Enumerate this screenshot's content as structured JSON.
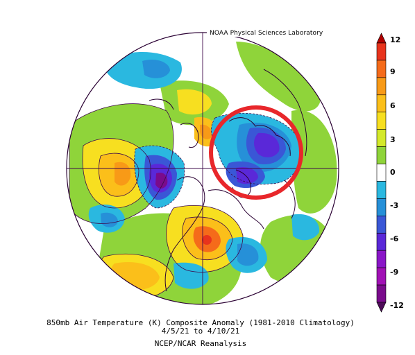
{
  "credit": "NOAA Physical Sciences Laboratory",
  "caption": {
    "line1": "850mb Air Temperature (K) Composite Anomaly (1981-2010 Climatology)",
    "line2": "4/5/21  to 4/10/21",
    "line3": "NCEP/NCAR Reanalysis"
  },
  "colorbar": {
    "labels": [
      "12",
      "9",
      "6",
      "3",
      "0",
      "-3",
      "-6",
      "-9",
      "-12"
    ],
    "bins": [
      {
        "color": "#b00000"
      },
      {
        "color": "#e8331c"
      },
      {
        "color": "#f56b1a"
      },
      {
        "color": "#f89a17"
      },
      {
        "color": "#fbbf1a"
      },
      {
        "color": "#f7df20"
      },
      {
        "color": "#d4e92a"
      },
      {
        "color": "#8fd43a"
      },
      {
        "color": "#ffffff"
      },
      {
        "color": "#2ab8e0"
      },
      {
        "color": "#2690d8"
      },
      {
        "color": "#3a57d6"
      },
      {
        "color": "#5a28d8"
      },
      {
        "color": "#8a16c8"
      },
      {
        "color": "#a111b5"
      },
      {
        "color": "#7a0b8c"
      },
      {
        "color": "#4d0b58"
      }
    ]
  },
  "highlight": {
    "color": "#e8272b"
  }
}
